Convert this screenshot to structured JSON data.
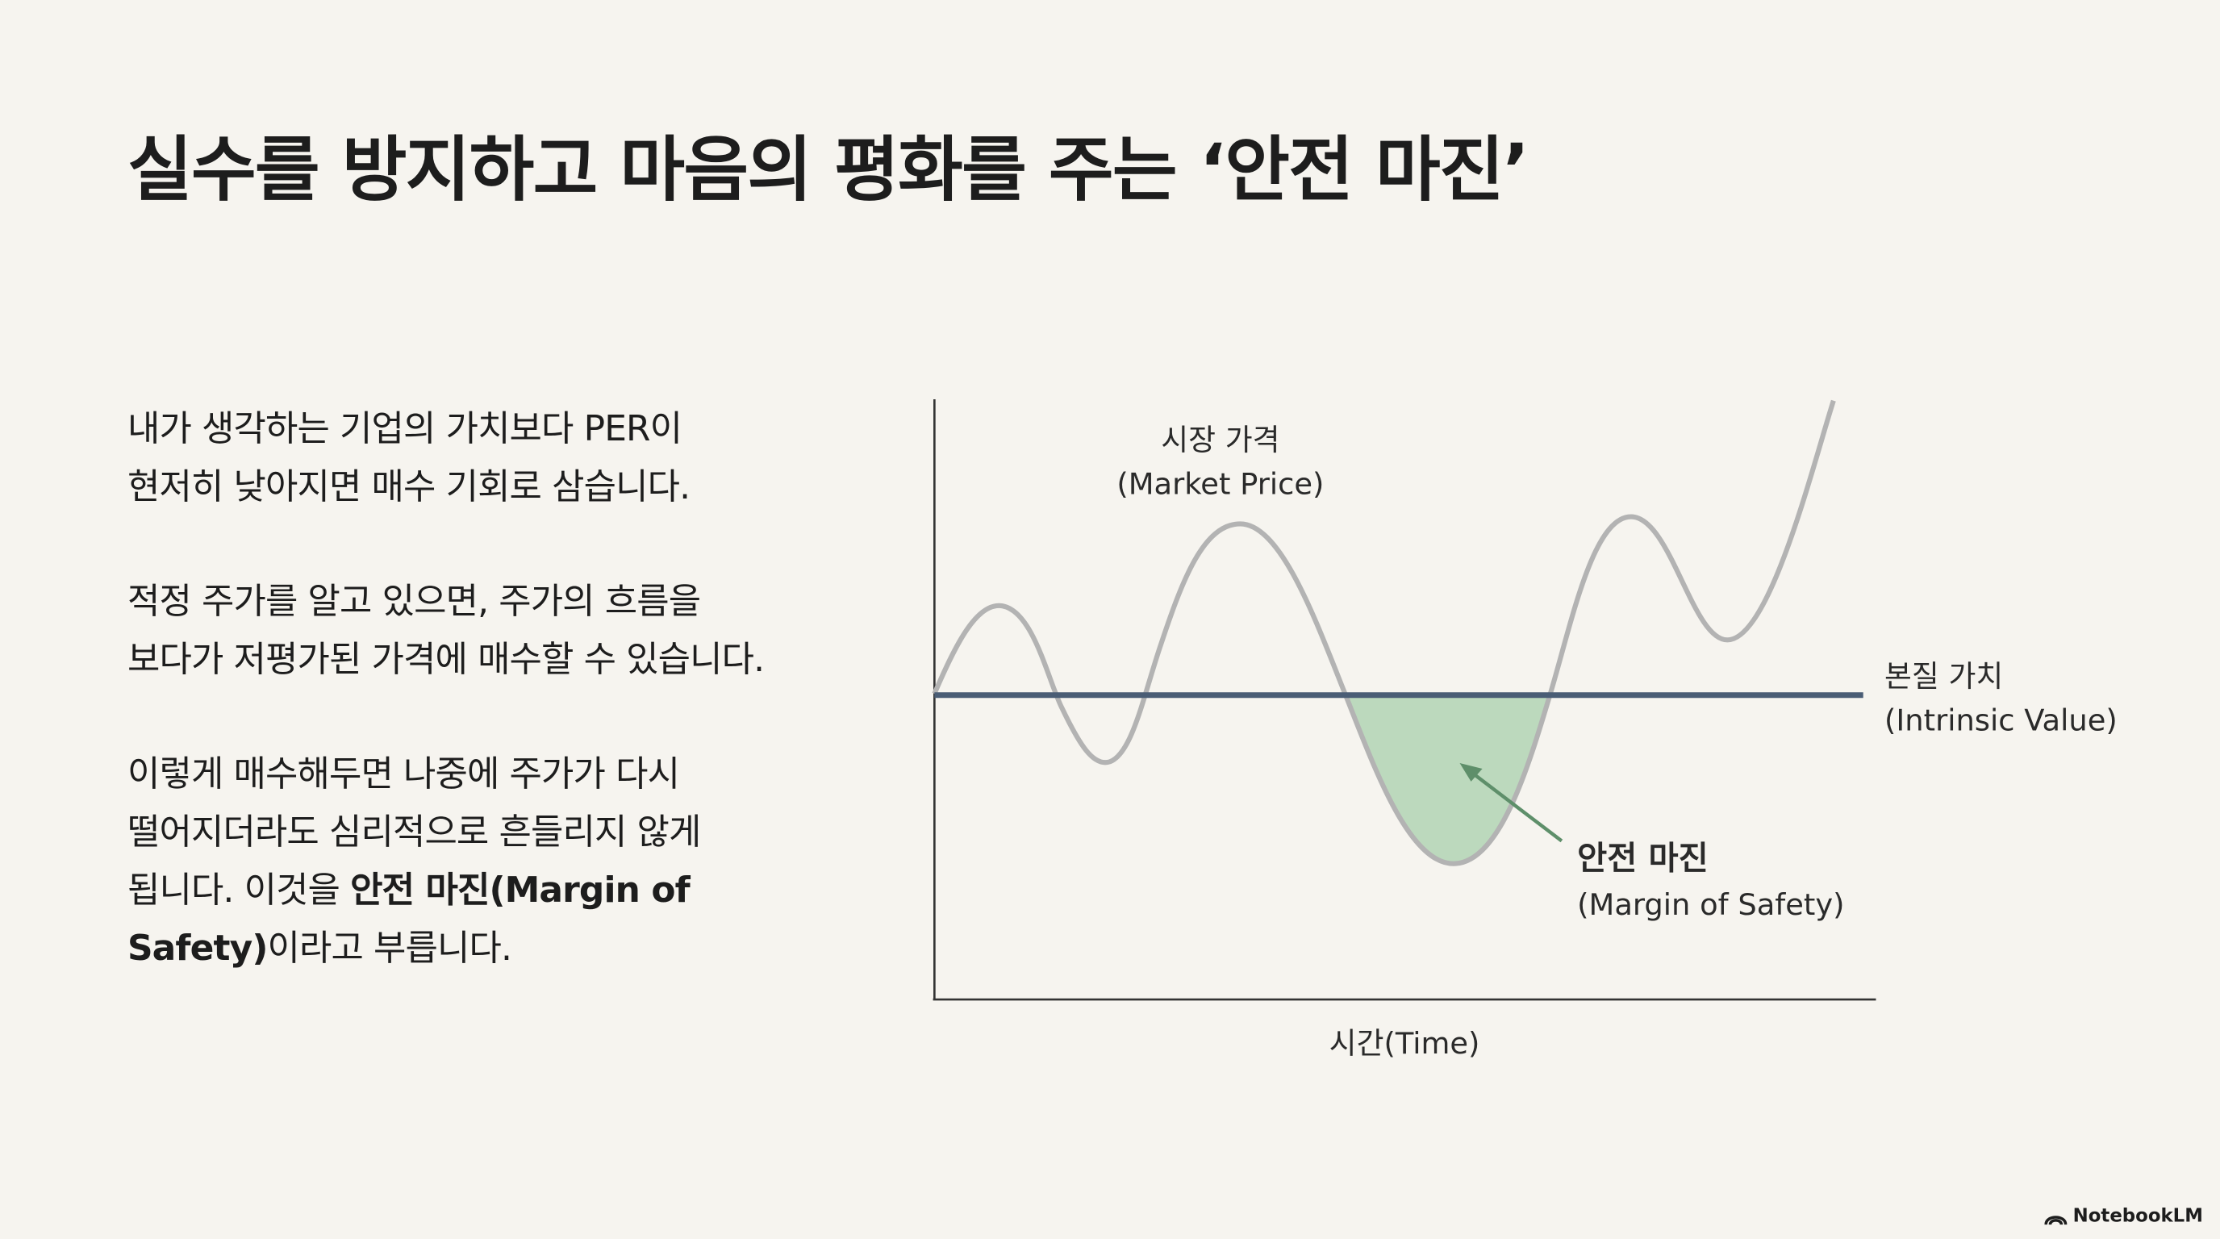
{
  "title": "실수를 방지하고 마음의 평화를 주는 ‘안전 마진’",
  "paragraphs": [
    {
      "text": "내가 생각하는 기업의 가치보다 PER이\n현저히 낮아지면 매수 기회로 삼습니다."
    },
    {
      "text": "적정 주가를 알고 있으면, 주가의 흐름을\n보다가 저평가된 가격에 매수할 수 있습니다."
    },
    {
      "text": "이렇게 매수해두면 나중에 주가가 다시\n떨어지더라도 심리적으로 흔들리지 않게\n됩니다. 이것을 ",
      "bold": "안전 마진(Margin of\nSafety)",
      "text_after": "이라고 부릅니다."
    }
  ],
  "diagram": {
    "market_price": {
      "label": "시장 가격",
      "sublabel": "(Market Price)"
    },
    "intrinsic_value": {
      "label": "본질 가치",
      "sublabel": "(Intrinsic Value)"
    },
    "margin_of_safety": {
      "label": "안전 마진",
      "sublabel": "(Margin of Safety)"
    },
    "x_axis_label": "시간(Time)"
  },
  "footer": {
    "brand": "NotebookLM"
  }
}
